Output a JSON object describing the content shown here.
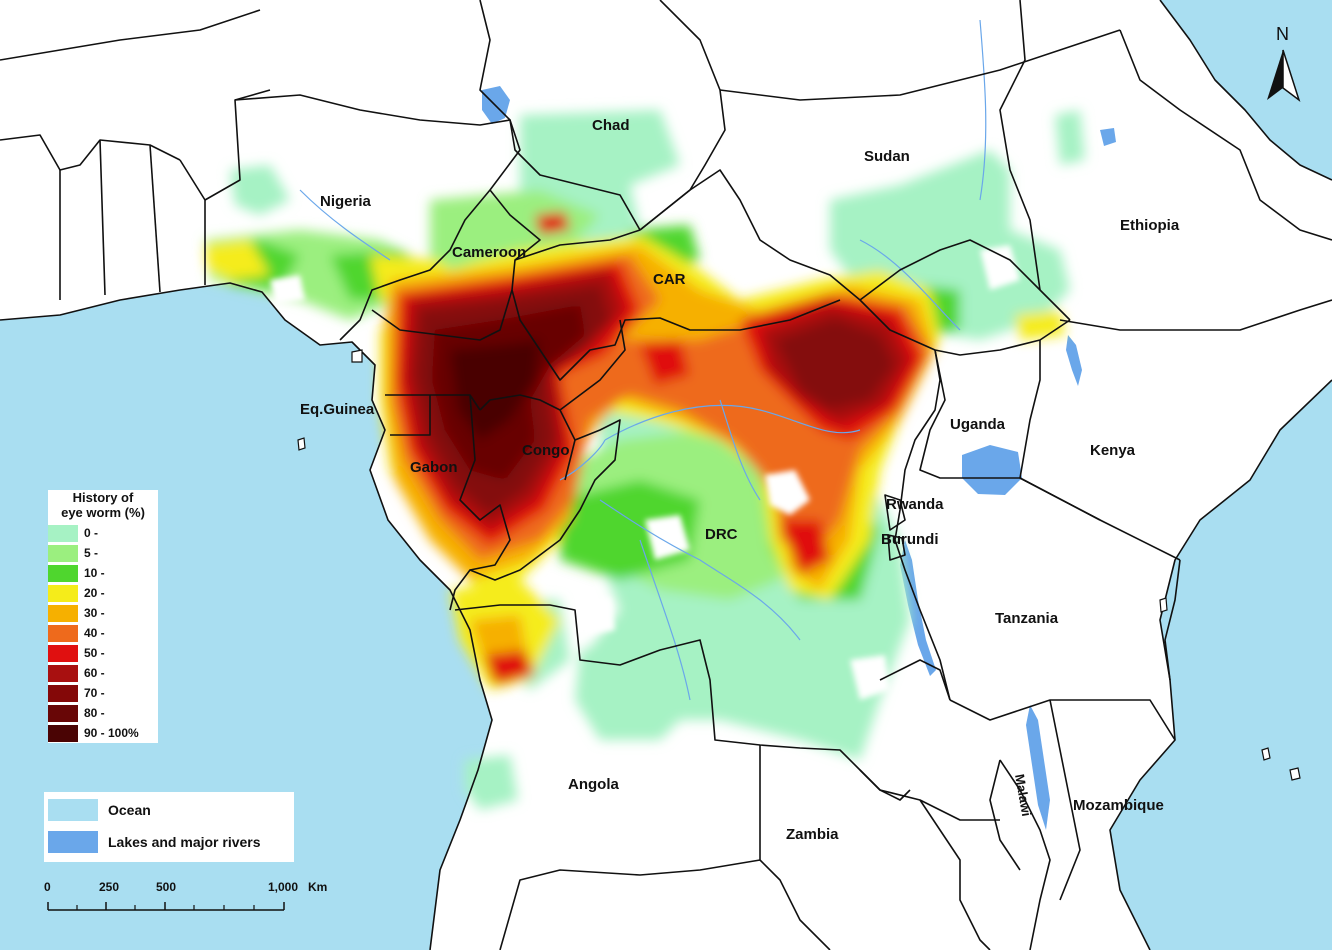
{
  "map": {
    "legend_title_line1": "History of",
    "legend_title_line2": "eye worm (%)",
    "legend": [
      {
        "label": "0 -",
        "color": "#a6f2c4"
      },
      {
        "label": "5 -",
        "color": "#9bef7f"
      },
      {
        "label": "10 -",
        "color": "#4fd62e"
      },
      {
        "label": "20 -",
        "color": "#f5ec1a"
      },
      {
        "label": "30 -",
        "color": "#f6b000"
      },
      {
        "label": "40 -",
        "color": "#ee6a1c"
      },
      {
        "label": "50 -",
        "color": "#e01010"
      },
      {
        "label": "60 -",
        "color": "#a81010"
      },
      {
        "label": "70 -",
        "color": "#840808"
      },
      {
        "label": "80 -",
        "color": "#680606"
      },
      {
        "label": "90 - 100%",
        "color": "#4a0404"
      }
    ],
    "water_legend": [
      {
        "label": "Ocean",
        "color": "#a9def1"
      },
      {
        "label": "Lakes and major rivers",
        "color": "#6aa7ea"
      }
    ],
    "scale": {
      "ticks": [
        "0",
        "250",
        "500",
        "1,000"
      ],
      "unit": "Km"
    },
    "north_label": "N",
    "countries": {
      "chad": "Chad",
      "sudan": "Sudan",
      "nigeria": "Nigeria",
      "ethiopia": "Ethiopia",
      "cameroon": "Cameroon",
      "car": "CAR",
      "eq_guinea": "Eq.Guinea",
      "uganda": "Uganda",
      "kenya": "Kenya",
      "gabon": "Gabon",
      "congo": "Congo",
      "rwanda": "Rwanda",
      "burundi": "Burundi",
      "drc": "DRC",
      "tanzania": "Tanzania",
      "angola": "Angola",
      "zambia": "Zambia",
      "malawi": "Malawi",
      "mozambique": "Mozambique"
    },
    "colors": {
      "ocean": "#a9def1",
      "lake": "#6aa7ea",
      "land": "#ffffff",
      "border": "#111111"
    }
  }
}
